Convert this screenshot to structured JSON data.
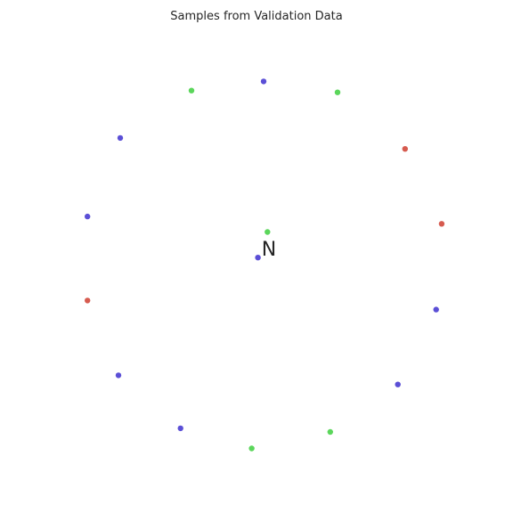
{
  "chart_data": {
    "type": "scatter",
    "title": "Samples from Validation Data",
    "xlabel": "",
    "ylabel": "",
    "grid": false,
    "axes_visible": false,
    "xlim": [
      -1.2,
      1.2
    ],
    "ylim": [
      -1.2,
      1.2
    ],
    "center_label": "N",
    "colors": {
      "blue": "#5b4fd6",
      "green": "#5bd65b",
      "red": "#d65b4f"
    },
    "points": [
      {
        "x": -0.005,
        "y": 0.92,
        "color": "blue"
      },
      {
        "x": -0.4,
        "y": 0.87,
        "color": "green"
      },
      {
        "x": 0.4,
        "y": 0.86,
        "color": "green"
      },
      {
        "x": -0.79,
        "y": 0.61,
        "color": "blue"
      },
      {
        "x": 0.77,
        "y": 0.55,
        "color": "red"
      },
      {
        "x": -0.97,
        "y": 0.18,
        "color": "blue"
      },
      {
        "x": 0.016,
        "y": 0.095,
        "color": "green"
      },
      {
        "x": 0.97,
        "y": 0.14,
        "color": "red"
      },
      {
        "x": -0.036,
        "y": -0.045,
        "color": "blue"
      },
      {
        "x": -0.97,
        "y": -0.28,
        "color": "red"
      },
      {
        "x": 0.94,
        "y": -0.33,
        "color": "blue"
      },
      {
        "x": -0.8,
        "y": -0.69,
        "color": "blue"
      },
      {
        "x": 0.73,
        "y": -0.74,
        "color": "blue"
      },
      {
        "x": -0.46,
        "y": -0.98,
        "color": "blue"
      },
      {
        "x": 0.36,
        "y": -1.0,
        "color": "green"
      },
      {
        "x": -0.07,
        "y": -1.09,
        "color": "green"
      }
    ]
  }
}
